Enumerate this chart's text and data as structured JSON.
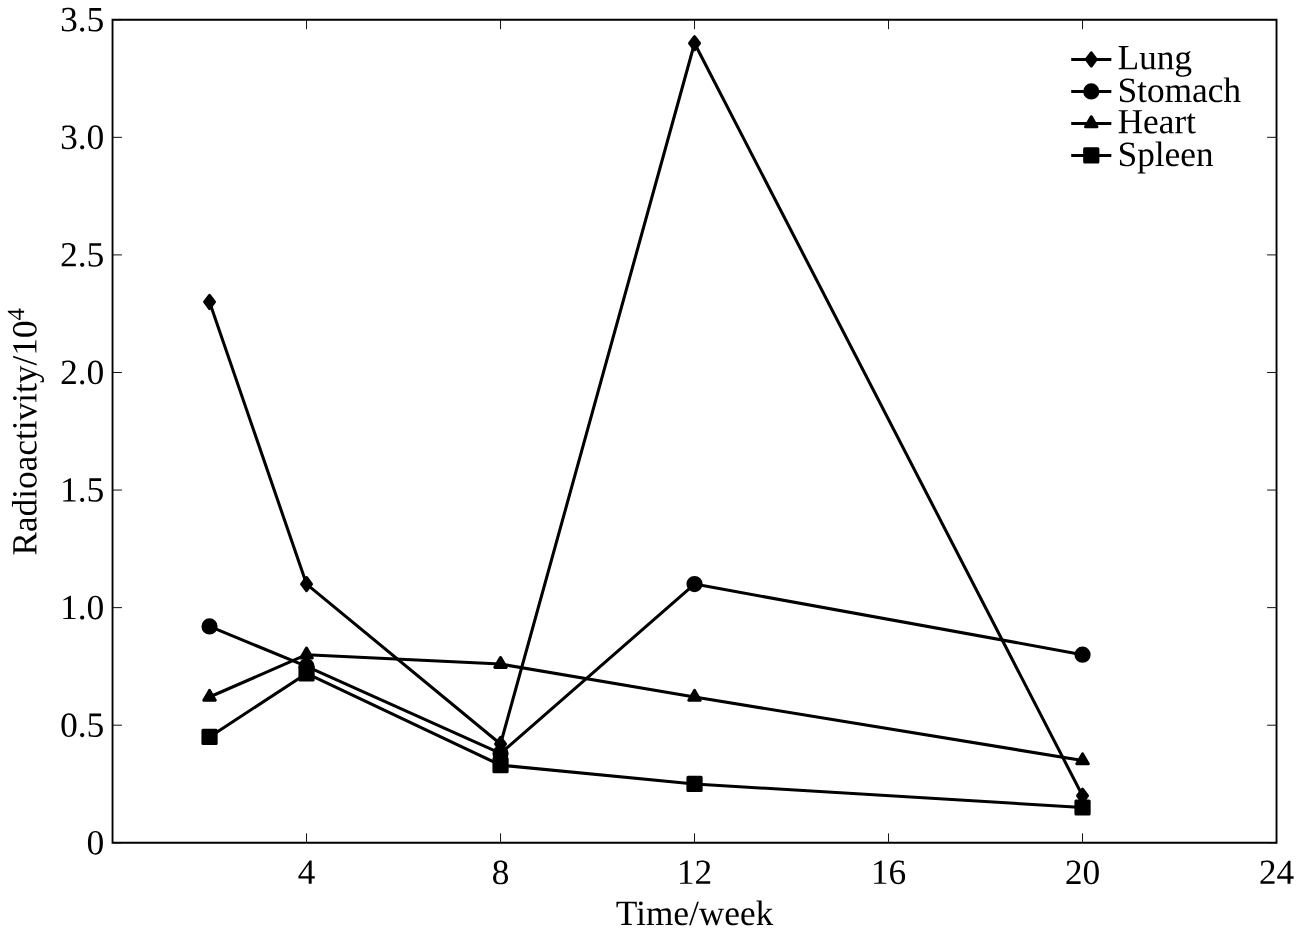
{
  "chart_data": {
    "type": "line",
    "xlabel": "Time/week",
    "ylabel": "Radioactivity/10$^{4}$",
    "x": [
      2,
      4,
      8,
      12,
      20
    ],
    "series": [
      {
        "name": "Lung",
        "color": "#000000",
        "marker": "diamond",
        "values": [
          2.3,
          1.1,
          0.42,
          3.4,
          0.2
        ]
      },
      {
        "name": "Stomach",
        "color": "#000000",
        "marker": "circle",
        "values": [
          0.92,
          0.75,
          0.38,
          1.1,
          0.8
        ]
      },
      {
        "name": "Heart",
        "color": "#000000",
        "marker": "triangle",
        "values": [
          0.62,
          0.8,
          0.76,
          0.62,
          0.35
        ]
      },
      {
        "name": "Spleen",
        "color": "#000000",
        "marker": "square",
        "values": [
          0.45,
          0.72,
          0.33,
          0.25,
          0.15
        ]
      }
    ],
    "xlim": [
      0,
      24
    ],
    "ylim": [
      0,
      3.5
    ],
    "xticks": [
      4,
      8,
      12,
      16,
      20,
      24
    ],
    "yticks": [
      0,
      0.5,
      {
        "value": 1,
        "label": "1.0"
      },
      1.5,
      {
        "value": 2,
        "label": "2.0"
      },
      2.5,
      {
        "value": 3,
        "label": "3.0"
      },
      3.5
    ],
    "legend": "top right",
    "line_style": "solid"
  }
}
